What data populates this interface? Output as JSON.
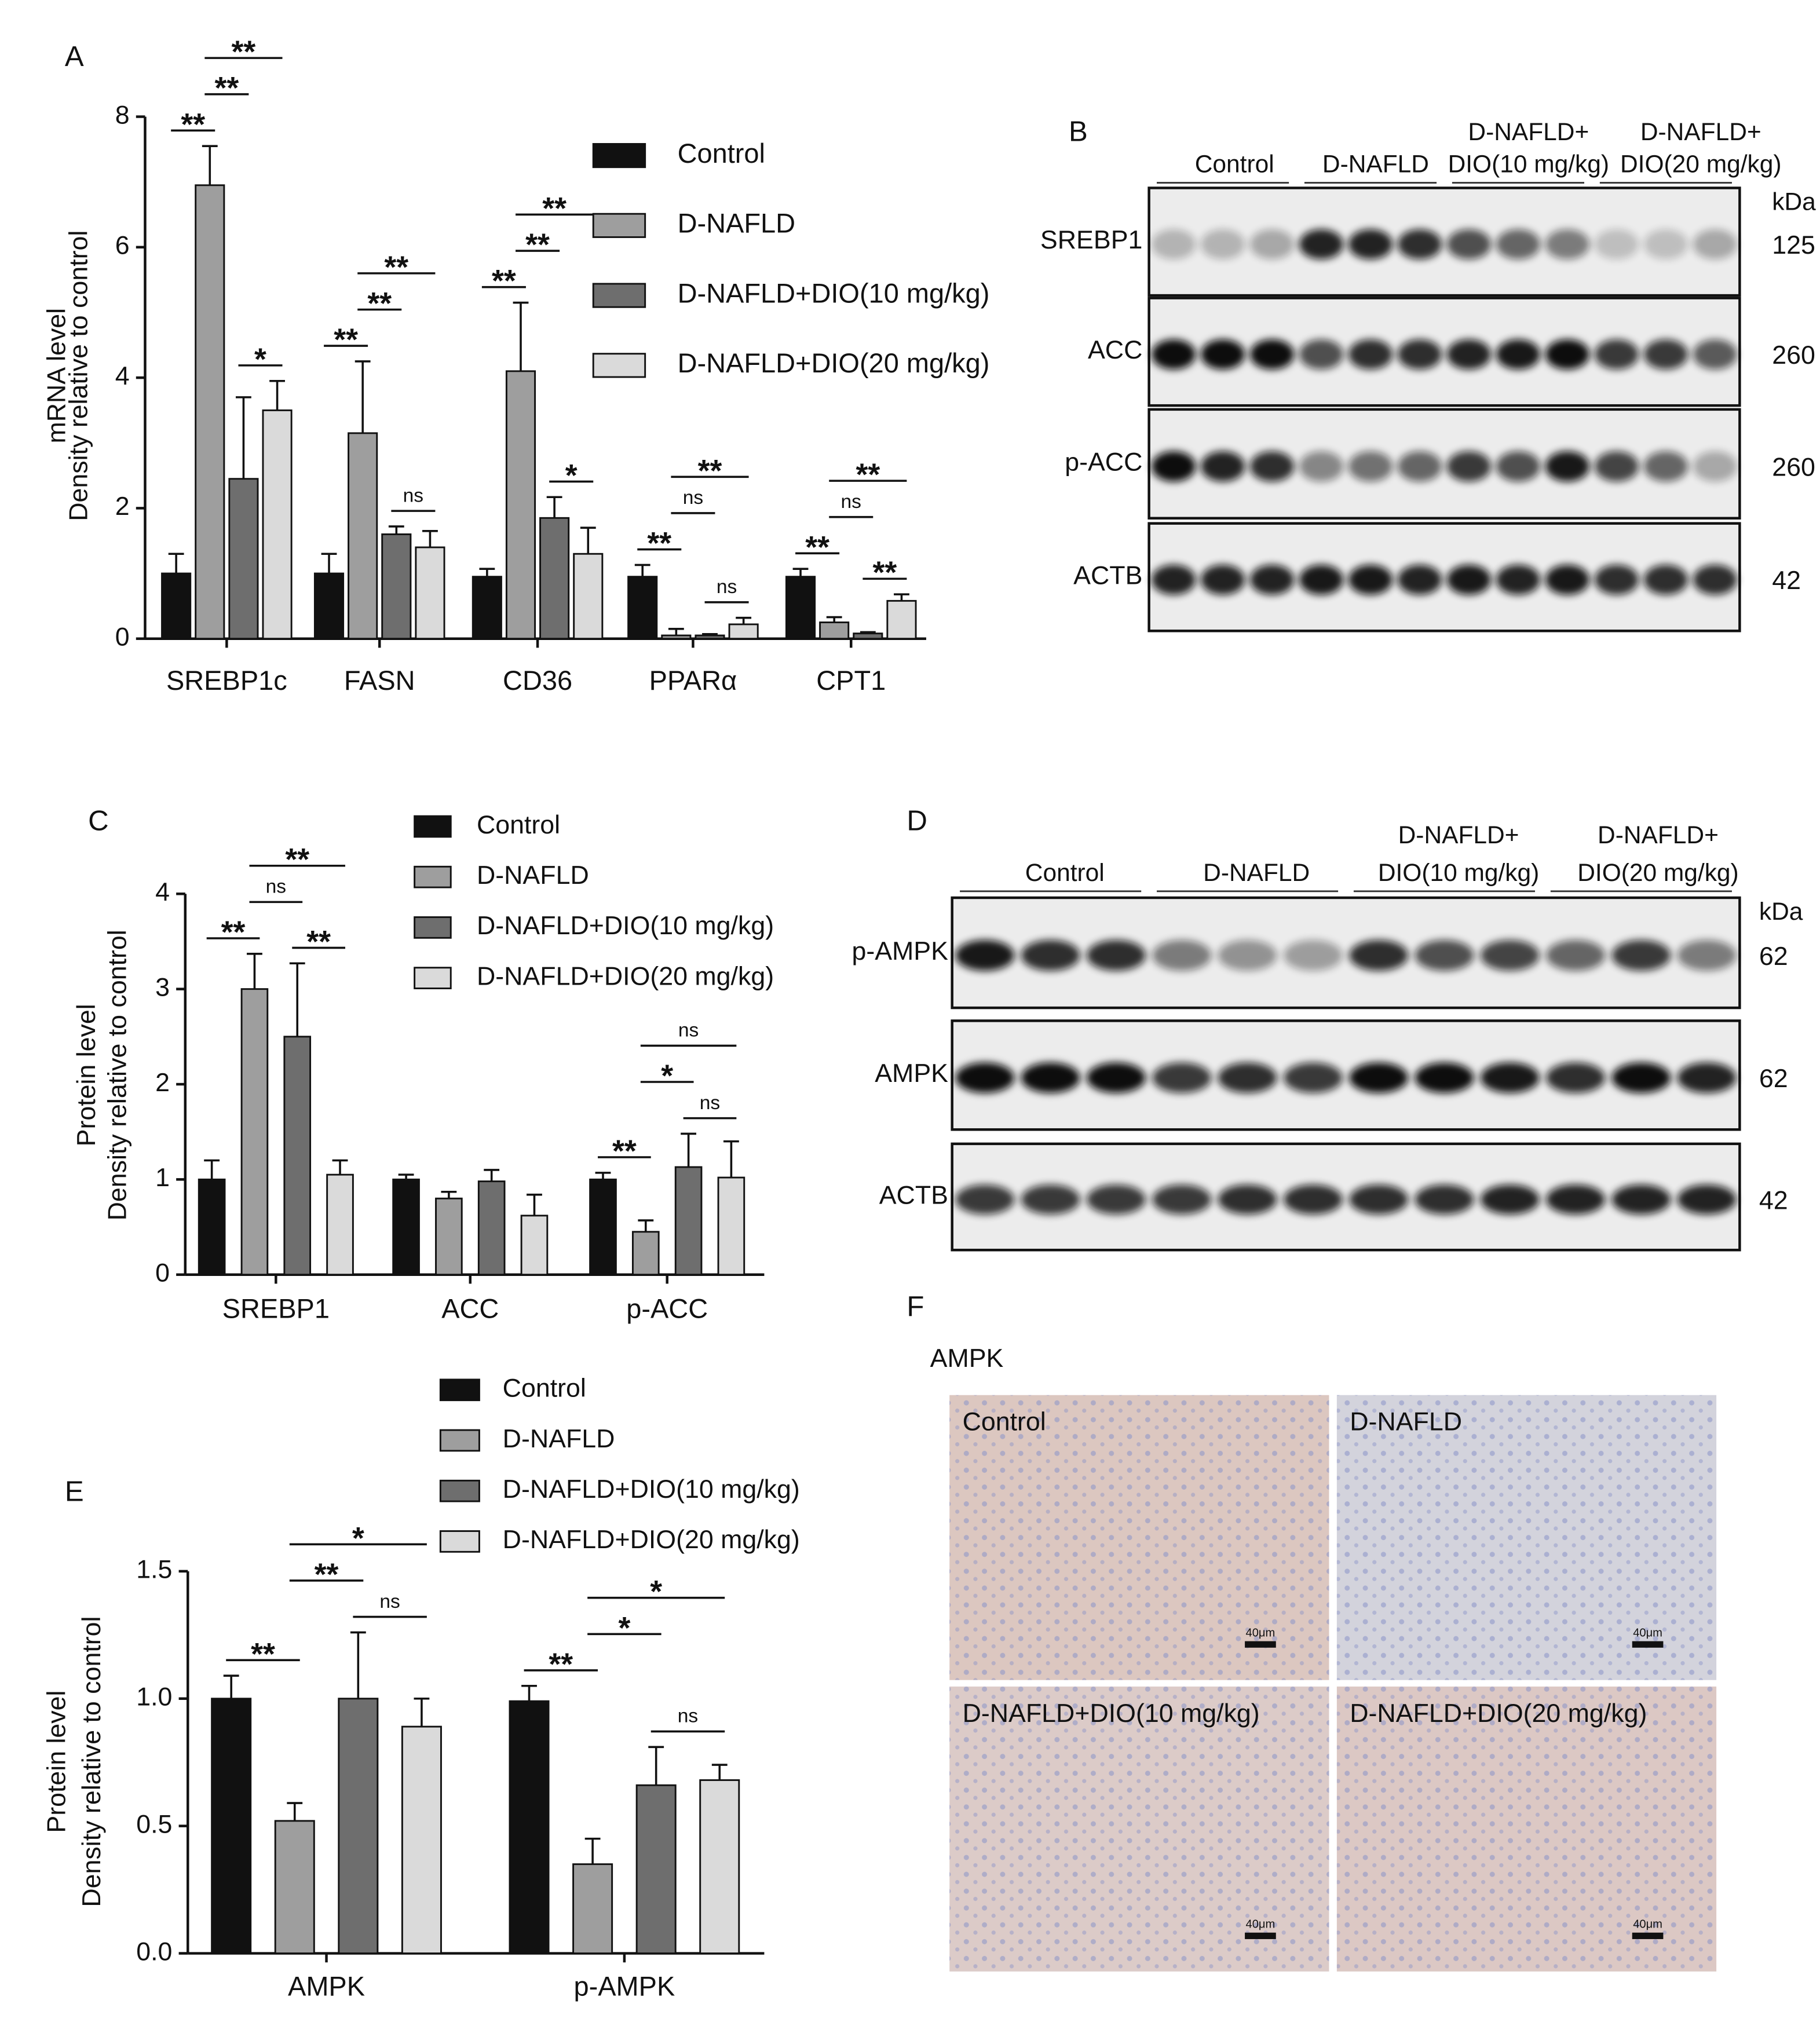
{
  "chart_data": [
    {
      "type": "bar",
      "panel": "A",
      "ylabel": [
        "mRNA level",
        "Density relative to control"
      ],
      "categories": [
        "SREBP1c",
        "FASN",
        "CD36",
        "PPARα",
        "CPT1"
      ],
      "series": [
        {
          "name": "Control",
          "color": "#111111",
          "values": [
            1,
            1,
            0.95,
            0.95,
            0.95
          ],
          "errors": [
            0.3,
            0.3,
            0.12,
            0.18,
            0.12
          ]
        },
        {
          "name": "D-NAFLD",
          "color": "#9e9e9e",
          "values": [
            6.95,
            3.15,
            4.1,
            0.05,
            0.25
          ],
          "errors": [
            0.6,
            1.1,
            1.05,
            0.1,
            0.08
          ]
        },
        {
          "name": "D-NAFLD+DIO(10 mg/kg)",
          "color": "#6e6e6e",
          "values": [
            2.45,
            1.6,
            1.85,
            0.05,
            0.08
          ],
          "errors": [
            1.25,
            0.12,
            0.32,
            0.02,
            0.02
          ]
        },
        {
          "name": "D-NAFLD+DIO(20 mg/kg)",
          "color": "#dadada",
          "values": [
            3.5,
            1.4,
            1.3,
            0.22,
            0.58
          ],
          "errors": [
            0.45,
            0.25,
            0.4,
            0.1,
            0.1
          ]
        }
      ],
      "ylim": [
        0,
        8
      ],
      "yticks": [
        0,
        2,
        4,
        6,
        8
      ],
      "annotations": [
        {
          "text": "**",
          "category": 0,
          "from": 0,
          "to": 1
        },
        {
          "text": "*",
          "category": 0,
          "from": 2,
          "to": 3
        },
        {
          "text": "**",
          "category": 0,
          "from": 1,
          "to": 2
        },
        {
          "text": "**",
          "category": 0,
          "from": 1,
          "to": 3
        },
        {
          "text": "ns",
          "category": 1,
          "from": 2,
          "to": 3
        },
        {
          "text": "**",
          "category": 1,
          "from": 0,
          "to": 1
        },
        {
          "text": "**",
          "category": 1,
          "from": 1,
          "to": 2
        },
        {
          "text": "**",
          "category": 1,
          "from": 1,
          "to": 3
        },
        {
          "text": "*",
          "category": 2,
          "from": 2,
          "to": 3
        },
        {
          "text": "**",
          "category": 2,
          "from": 0,
          "to": 1
        },
        {
          "text": "**",
          "category": 2,
          "from": 1,
          "to": 2
        },
        {
          "text": "**",
          "category": 2,
          "from": 1,
          "to": 3
        },
        {
          "text": "ns",
          "category": 3,
          "from": 2,
          "to": 3
        },
        {
          "text": "**",
          "category": 3,
          "from": 0,
          "to": 1
        },
        {
          "text": "ns",
          "category": 3,
          "from": 1,
          "to": 2
        },
        {
          "text": "**",
          "category": 3,
          "from": 1,
          "to": 3
        },
        {
          "text": "**",
          "category": 4,
          "from": 2,
          "to": 3
        },
        {
          "text": "**",
          "category": 4,
          "from": 0,
          "to": 1
        },
        {
          "text": "ns",
          "category": 4,
          "from": 1,
          "to": 2
        },
        {
          "text": "**",
          "category": 4,
          "from": 1,
          "to": 3
        }
      ]
    },
    {
      "type": "bar",
      "panel": "C",
      "ylabel": [
        "Protein level",
        "Density relative to control"
      ],
      "categories": [
        "SREBP1",
        "ACC",
        "p-ACC"
      ],
      "series": [
        {
          "name": "Control",
          "color": "#111111",
          "values": [
            1,
            1,
            1
          ],
          "errors": [
            0.2,
            0.05,
            0.07
          ]
        },
        {
          "name": "D-NAFLD",
          "color": "#9e9e9e",
          "values": [
            3.0,
            0.8,
            0.45
          ],
          "errors": [
            0.37,
            0.07,
            0.12
          ]
        },
        {
          "name": "D-NAFLD+DIO(10 mg/kg)",
          "color": "#6e6e6e",
          "values": [
            2.5,
            0.98,
            1.13
          ],
          "errors": [
            0.77,
            0.12,
            0.35
          ]
        },
        {
          "name": "D-NAFLD+DIO(20 mg/kg)",
          "color": "#dadada",
          "values": [
            1.05,
            0.62,
            1.02
          ],
          "errors": [
            0.15,
            0.22,
            0.38
          ]
        }
      ],
      "ylim": [
        0,
        4
      ],
      "yticks": [
        0,
        1,
        2,
        3,
        4
      ],
      "annotations": [
        {
          "text": "**",
          "category": 0,
          "from": 0,
          "to": 1
        },
        {
          "text": "**",
          "category": 0,
          "from": 2,
          "to": 3
        },
        {
          "text": "ns",
          "category": 0,
          "from": 1,
          "to": 2
        },
        {
          "text": "**",
          "category": 0,
          "from": 1,
          "to": 3
        },
        {
          "text": "**",
          "category": 2,
          "from": 0,
          "to": 1
        },
        {
          "text": "ns",
          "category": 2,
          "from": 2,
          "to": 3
        },
        {
          "text": "*",
          "category": 2,
          "from": 1,
          "to": 2
        },
        {
          "text": "ns",
          "category": 2,
          "from": 1,
          "to": 3
        }
      ]
    },
    {
      "type": "bar",
      "panel": "E",
      "ylabel": [
        "Protein level",
        "Density relative to control"
      ],
      "categories": [
        "AMPK",
        "p-AMPK"
      ],
      "series": [
        {
          "name": "Control",
          "color": "#111111",
          "values": [
            1.0,
            0.99
          ],
          "errors": [
            0.09,
            0.06
          ]
        },
        {
          "name": "D-NAFLD",
          "color": "#9e9e9e",
          "values": [
            0.52,
            0.35
          ],
          "errors": [
            0.07,
            0.1
          ]
        },
        {
          "name": "D-NAFLD+DIO(10 mg/kg)",
          "color": "#6e6e6e",
          "values": [
            1.0,
            0.66
          ],
          "errors": [
            0.26,
            0.15
          ]
        },
        {
          "name": "D-NAFLD+DIO(20 mg/kg)",
          "color": "#dadada",
          "values": [
            0.89,
            0.68
          ],
          "errors": [
            0.11,
            0.06
          ]
        }
      ],
      "ylim": [
        0,
        1.5
      ],
      "yticks": [
        {
          "value": 0,
          "label": "0.0"
        },
        {
          "value": 0.5,
          "label": "0.5"
        },
        {
          "value": 1,
          "label": "1.0"
        },
        {
          "value": 1.5,
          "label": "1.5"
        }
      ],
      "annotations": [
        {
          "text": "**",
          "category": 0,
          "from": 0,
          "to": 1
        },
        {
          "text": "ns",
          "category": 0,
          "from": 2,
          "to": 3
        },
        {
          "text": "**",
          "category": 0,
          "from": 1,
          "to": 2
        },
        {
          "text": "*",
          "category": 0,
          "from": 1,
          "to": 3
        },
        {
          "text": "**",
          "category": 1,
          "from": 0,
          "to": 1
        },
        {
          "text": "ns",
          "category": 1,
          "from": 2,
          "to": 3
        },
        {
          "text": "*",
          "category": 1,
          "from": 1,
          "to": 2
        },
        {
          "text": "*",
          "category": 1,
          "from": 1,
          "to": 3
        }
      ]
    }
  ],
  "blots": [
    {
      "panel": "B",
      "groups": [
        [
          "Control"
        ],
        [
          "D-NAFLD"
        ],
        [
          "D-NAFLD+",
          "DIO(10 mg/kg)"
        ],
        [
          "D-NAFLD+",
          "DIO(20 mg/kg)"
        ]
      ],
      "unit": "kDa",
      "rows": [
        {
          "label": "SREBP1",
          "size": 125
        },
        {
          "label": "ACC",
          "size": 260
        },
        {
          "label": "p-ACC",
          "size": 260
        },
        {
          "label": "ACTB",
          "size": 42
        }
      ]
    },
    {
      "panel": "D",
      "groups": [
        [
          "Control"
        ],
        [
          "D-NAFLD"
        ],
        [
          "D-NAFLD+",
          "DIO(10 mg/kg)"
        ],
        [
          "D-NAFLD+",
          "DIO(20 mg/kg)"
        ]
      ],
      "unit": "kDa",
      "rows": [
        {
          "label": "p-AMPK",
          "size": 62
        },
        {
          "label": "AMPK",
          "size": 62
        },
        {
          "label": "ACTB",
          "size": 42
        }
      ]
    }
  ],
  "ihc": {
    "panel": "F",
    "title": "AMPK",
    "images": [
      "Control",
      "D-NAFLD",
      "D-NAFLD+DIO(10 mg/kg)",
      "D-NAFLD+DIO(20 mg/kg)"
    ],
    "scale": "40μm"
  }
}
